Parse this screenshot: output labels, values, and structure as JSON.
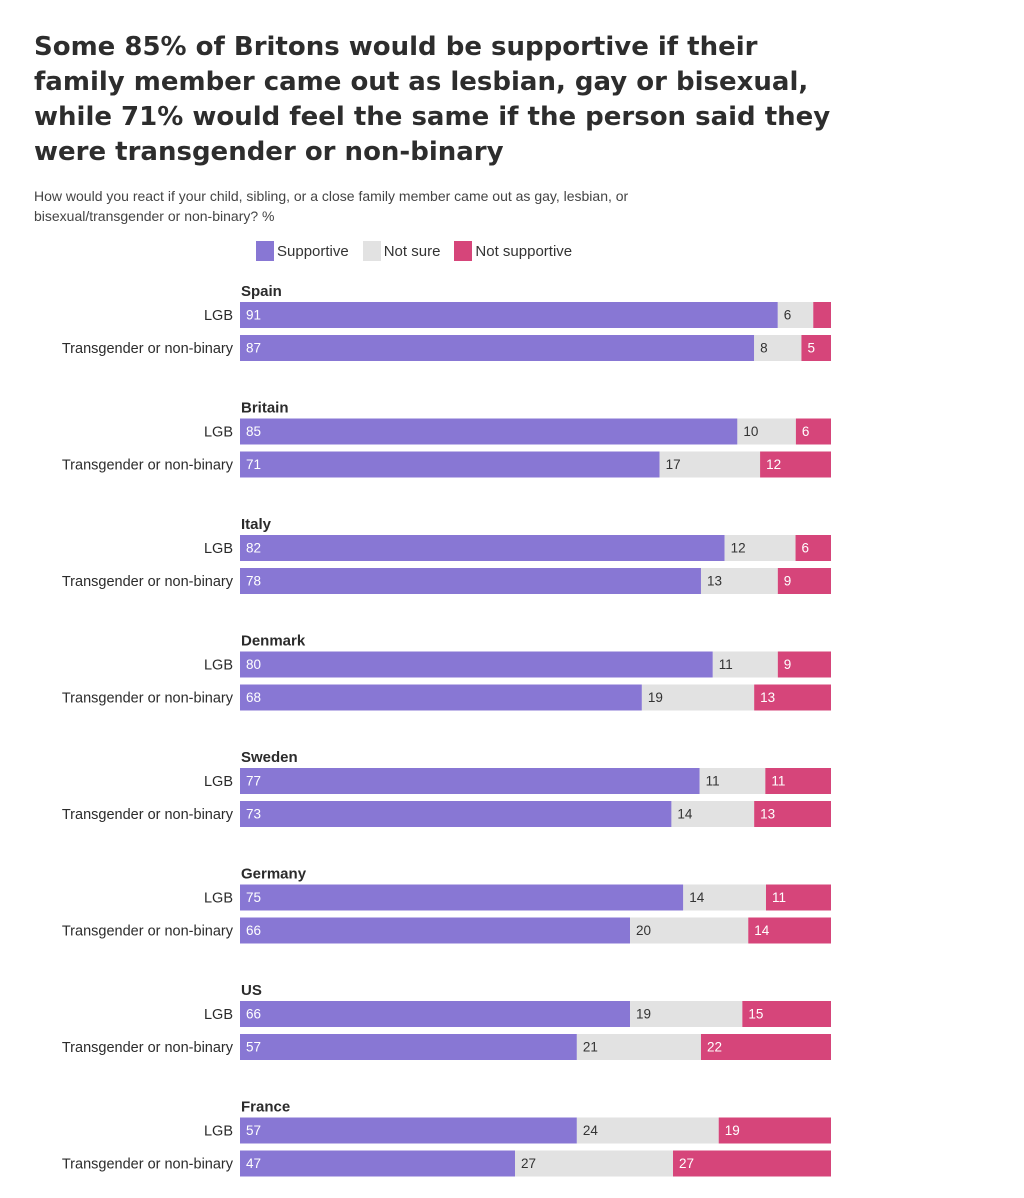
{
  "colors": {
    "supportive": "#8877d4",
    "not_sure": "#e2e2e2",
    "not_supportive": "#d6457a",
    "label_on_dark": "#ffffff",
    "label_on_light": "#333333",
    "text": "#2b2b2b"
  },
  "chart_data": {
    "type": "bar",
    "orientation": "horizontal",
    "stacked": true,
    "title": "Some 85% of Britons would be supportive if their family member came out as lesbian, gay or bisexual, while 71% would feel the same if the person said they were transgender or non-binary",
    "subtitle": "How would you react if your child, sibling, or a close family member came out as gay, lesbian, or bisexual/transgender or non-binary? %",
    "unit": "%",
    "xlim": [
      0,
      100
    ],
    "legend": [
      "Supportive",
      "Not sure",
      "Not supportive"
    ],
    "legend_position": "top",
    "groups": [
      {
        "name": "Spain",
        "rows": [
          {
            "label": "LGB",
            "supportive": 91,
            "not_sure": 6,
            "not_supportive": 3,
            "labels": [
              "91",
              "6",
              ""
            ]
          },
          {
            "label": "Transgender or non-binary",
            "supportive": 87,
            "not_sure": 8,
            "not_supportive": 5,
            "labels": [
              "87",
              "8",
              "5"
            ]
          }
        ]
      },
      {
        "name": "Britain",
        "rows": [
          {
            "label": "LGB",
            "supportive": 85,
            "not_sure": 10,
            "not_supportive": 6,
            "labels": [
              "85",
              "10",
              "6"
            ]
          },
          {
            "label": "Transgender or non-binary",
            "supportive": 71,
            "not_sure": 17,
            "not_supportive": 12,
            "labels": [
              "71",
              "17",
              "12"
            ]
          }
        ]
      },
      {
        "name": "Italy",
        "rows": [
          {
            "label": "LGB",
            "supportive": 82,
            "not_sure": 12,
            "not_supportive": 6,
            "labels": [
              "82",
              "12",
              "6"
            ]
          },
          {
            "label": "Transgender or non-binary",
            "supportive": 78,
            "not_sure": 13,
            "not_supportive": 9,
            "labels": [
              "78",
              "13",
              "9"
            ]
          }
        ]
      },
      {
        "name": "Denmark",
        "rows": [
          {
            "label": "LGB",
            "supportive": 80,
            "not_sure": 11,
            "not_supportive": 9,
            "labels": [
              "80",
              "11",
              "9"
            ]
          },
          {
            "label": "Transgender or non-binary",
            "supportive": 68,
            "not_sure": 19,
            "not_supportive": 13,
            "labels": [
              "68",
              "19",
              "13"
            ]
          }
        ]
      },
      {
        "name": "Sweden",
        "rows": [
          {
            "label": "LGB",
            "supportive": 77,
            "not_sure": 11,
            "not_supportive": 11,
            "labels": [
              "77",
              "11",
              "11"
            ]
          },
          {
            "label": "Transgender or non-binary",
            "supportive": 73,
            "not_sure": 14,
            "not_supportive": 13,
            "labels": [
              "73",
              "14",
              "13"
            ]
          }
        ]
      },
      {
        "name": "Germany",
        "rows": [
          {
            "label": "LGB",
            "supportive": 75,
            "not_sure": 14,
            "not_supportive": 11,
            "labels": [
              "75",
              "14",
              "11"
            ]
          },
          {
            "label": "Transgender or non-binary",
            "supportive": 66,
            "not_sure": 20,
            "not_supportive": 14,
            "labels": [
              "66",
              "20",
              "14"
            ]
          }
        ]
      },
      {
        "name": "US",
        "rows": [
          {
            "label": "LGB",
            "supportive": 66,
            "not_sure": 19,
            "not_supportive": 15,
            "labels": [
              "66",
              "19",
              "15"
            ]
          },
          {
            "label": "Transgender or non-binary",
            "supportive": 57,
            "not_sure": 21,
            "not_supportive": 22,
            "labels": [
              "57",
              "21",
              "22"
            ]
          }
        ]
      },
      {
        "name": "France",
        "rows": [
          {
            "label": "LGB",
            "supportive": 57,
            "not_sure": 24,
            "not_supportive": 19,
            "labels": [
              "57",
              "24",
              "19"
            ]
          },
          {
            "label": "Transgender or non-binary",
            "supportive": 47,
            "not_sure": 27,
            "not_supportive": 27,
            "labels": [
              "47",
              "27",
              "27"
            ]
          }
        ]
      }
    ]
  }
}
